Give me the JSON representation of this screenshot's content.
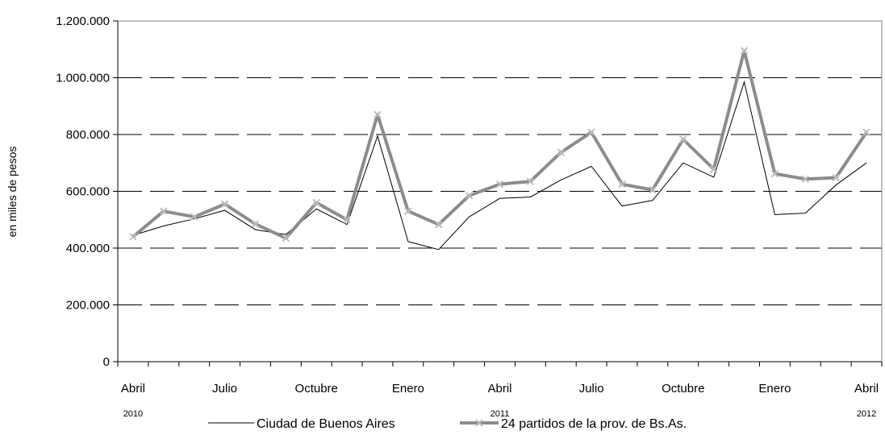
{
  "chart_data": {
    "type": "line",
    "ylabel": "en miles de pesos",
    "ylim": [
      0,
      1200000
    ],
    "yticks": [
      0,
      200000,
      400000,
      600000,
      800000,
      1000000,
      1200000
    ],
    "ytick_labels": [
      "0",
      "200.000",
      "400.000",
      "600.000",
      "800.000",
      "1.000.000",
      "1.200.000"
    ],
    "grid": "horizontal dashed",
    "legend": "bottom",
    "x": [
      "2010-04",
      "2010-05",
      "2010-06",
      "2010-07",
      "2010-08",
      "2010-09",
      "2010-10",
      "2010-11",
      "2010-12",
      "2011-01",
      "2011-02",
      "2011-03",
      "2011-04",
      "2011-05",
      "2011-06",
      "2011-07",
      "2011-08",
      "2011-09",
      "2011-10",
      "2011-11",
      "2011-12",
      "2012-01",
      "2012-02",
      "2012-03",
      "2012-04"
    ],
    "x_tick_labels": [
      {
        "index": 0,
        "label": "Abril"
      },
      {
        "index": 3,
        "label": "Julio"
      },
      {
        "index": 6,
        "label": "Octubre"
      },
      {
        "index": 9,
        "label": "Enero"
      },
      {
        "index": 12,
        "label": "Abril"
      },
      {
        "index": 15,
        "label": "Julio"
      },
      {
        "index": 18,
        "label": "Octubre"
      },
      {
        "index": 21,
        "label": "Enero"
      },
      {
        "index": 24,
        "label": "Abril"
      }
    ],
    "year_labels": [
      {
        "index": 0,
        "label": "2010"
      },
      {
        "index": 12,
        "label": "2011"
      },
      {
        "index": 24,
        "label": "2012"
      }
    ],
    "series": [
      {
        "name": "Ciudad de Buenos Aires",
        "color": "#000000",
        "values": [
          445000,
          478000,
          503000,
          533000,
          465000,
          448000,
          538000,
          483000,
          795000,
          423000,
          395000,
          510000,
          575000,
          580000,
          640000,
          688000,
          548000,
          568000,
          700000,
          650000,
          985000,
          518000,
          523000,
          622000,
          700000
        ]
      },
      {
        "name": "24 partidos de la prov. de Bs.As.",
        "color": "#8c8c8c",
        "marker_color": "#bdbdbd",
        "values": [
          440000,
          530000,
          510000,
          555000,
          485000,
          435000,
          560000,
          500000,
          870000,
          530000,
          483000,
          585000,
          625000,
          635000,
          737000,
          808000,
          625000,
          605000,
          783000,
          678000,
          1095000,
          662000,
          643000,
          648000,
          808000
        ]
      }
    ]
  }
}
